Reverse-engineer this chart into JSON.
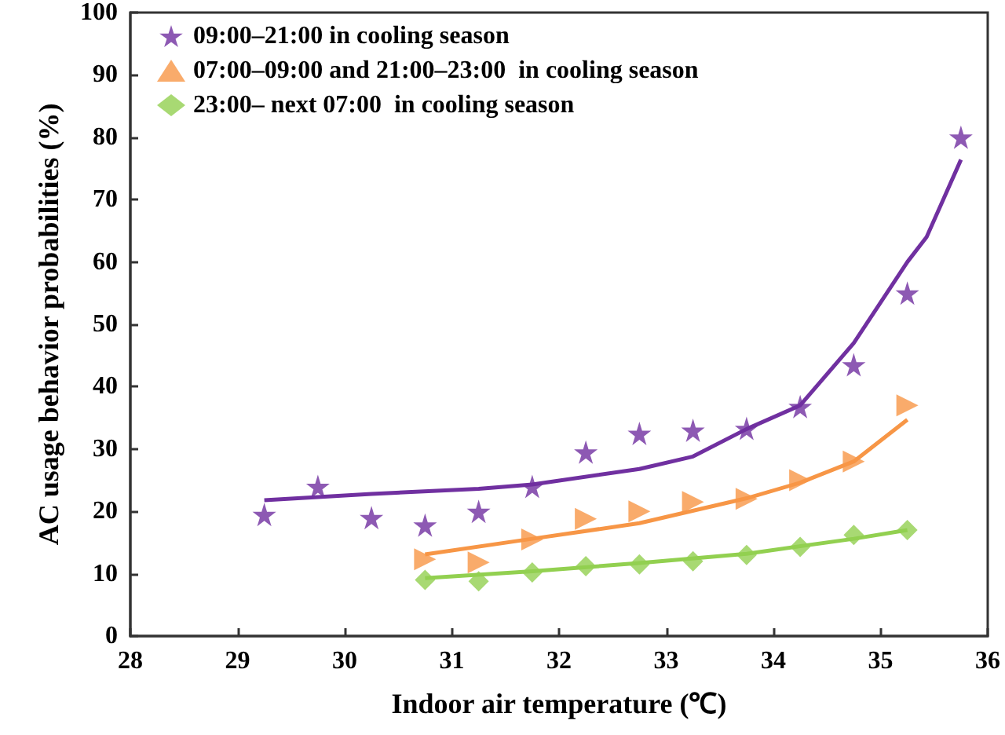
{
  "chart_data": {
    "type": "scatter",
    "xlabel": "Indoor air temperature (℃)",
    "ylabel": "AC usage behavior probabilities (%)",
    "xlim": [
      28,
      36
    ],
    "xticks": [
      28,
      29,
      30,
      31,
      32,
      33,
      34,
      35,
      36
    ],
    "ylim": [
      0,
      100
    ],
    "yticks": [
      0,
      10,
      20,
      30,
      40,
      50,
      60,
      70,
      80,
      90,
      100
    ],
    "grid": false,
    "legend": "top left",
    "series": [
      {
        "name": "09:00–21:00 in cooling season",
        "color": "#7030a0",
        "marker": "star",
        "x": [
          29.25,
          29.75,
          30.25,
          30.75,
          31.25,
          31.75,
          32.25,
          32.75,
          33.25,
          33.75,
          34.25,
          34.75,
          35.25,
          35.75
        ],
        "values": [
          19.5,
          24,
          19,
          17.8,
          20,
          24,
          29.5,
          32.5,
          33,
          33.3,
          36.8,
          43.5,
          55,
          80
        ]
      },
      {
        "name": "07:00–09:00 and 21:00–23:00  in cooling season",
        "color": "#f79646",
        "marker": "triangle",
        "x": [
          30.75,
          31.25,
          31.75,
          32.25,
          32.75,
          33.25,
          33.75,
          34.25,
          34.75,
          35.25
        ],
        "values": [
          12.3,
          11.8,
          15.5,
          18.8,
          20,
          21.5,
          22,
          25,
          28,
          37
        ]
      },
      {
        "name": "23:00– next 07:00  in cooling season",
        "color": "#92d050",
        "marker": "diamond",
        "x": [
          30.75,
          31.25,
          31.75,
          32.25,
          32.75,
          33.25,
          33.75,
          34.25,
          34.75,
          35.25
        ],
        "values": [
          9,
          8.8,
          10.2,
          11.2,
          11.5,
          12,
          13,
          14.3,
          16.2,
          17
        ]
      },
      {
        "type": "line",
        "color": "#7030a0",
        "marker": "none",
        "x": [
          29.25,
          30.25,
          31.25,
          31.75,
          32.75,
          33.25,
          33.75,
          34.25,
          34.75,
          35.25,
          35.43,
          35.75
        ],
        "values": [
          21.8,
          22.8,
          23.6,
          24.3,
          26.8,
          28.8,
          33.2,
          37,
          47,
          60,
          64,
          76.4
        ]
      },
      {
        "type": "line",
        "color": "#f79646",
        "marker": "none",
        "x": [
          30.75,
          31.75,
          32.75,
          33.75,
          34.25,
          34.75,
          35.25
        ],
        "values": [
          13.1,
          15.6,
          18.1,
          22.1,
          24.6,
          28,
          34.7
        ]
      },
      {
        "type": "line",
        "color": "#92d050",
        "marker": "none",
        "x": [
          30.75,
          31.75,
          32.75,
          33.75,
          34.75,
          35.25
        ],
        "values": [
          9.3,
          10.4,
          11.7,
          13.2,
          15.6,
          17
        ]
      }
    ]
  }
}
